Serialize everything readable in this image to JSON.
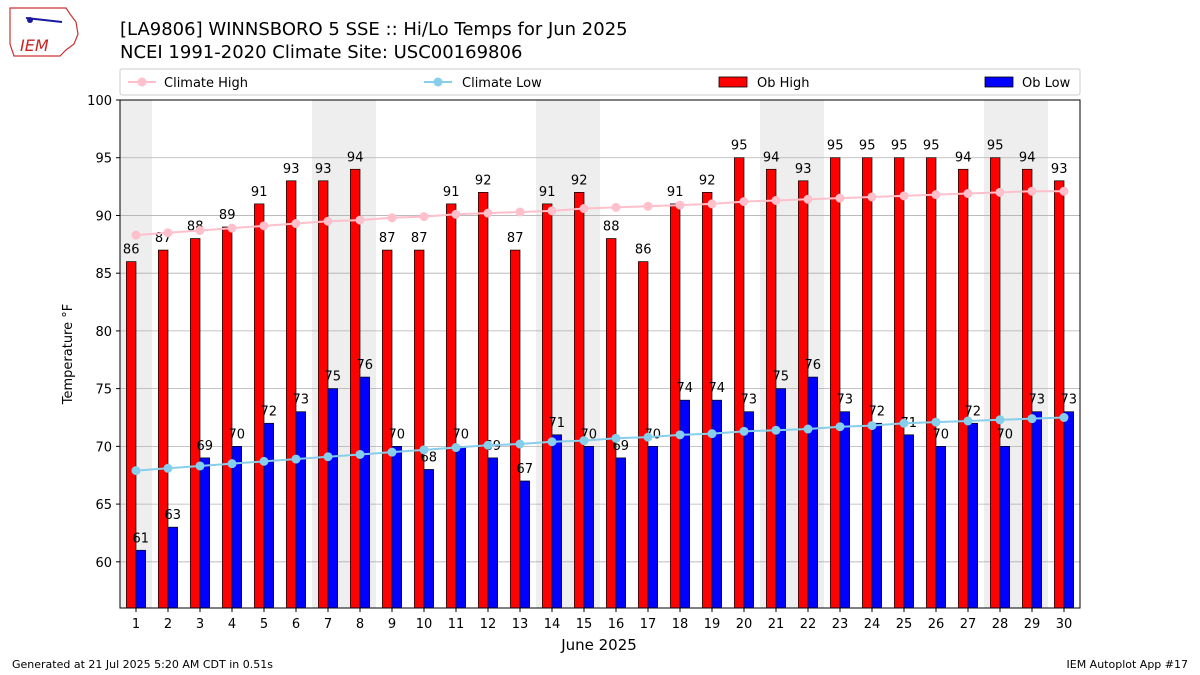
{
  "logo": {
    "text": "IEM"
  },
  "header": {
    "title": "[LA9806] WINNSBORO 5 SSE :: Hi/Lo Temps for Jun 2025",
    "subtitle": "NCEI 1991-2020 Climate Site: USC00169806"
  },
  "footer": {
    "left": "Generated at 21 Jul 2025 5:20 AM CDT in 0.51s",
    "right": "IEM Autoplot App #17"
  },
  "colors": {
    "ob_high": "#ff0000",
    "ob_low": "#0000ff",
    "climate_high": "#ffc0cb",
    "climate_low": "#87ceeb",
    "weekend_band": "#eeeeee"
  },
  "chart_data": {
    "type": "bar",
    "xlabel": "June 2025",
    "ylabel": "Temperature °F",
    "ylim": [
      56,
      100
    ],
    "yticks": [
      60,
      65,
      70,
      75,
      80,
      85,
      90,
      95,
      100
    ],
    "grid": true,
    "legend_placement": "top",
    "x": [
      1,
      2,
      3,
      4,
      5,
      6,
      7,
      8,
      9,
      10,
      11,
      12,
      13,
      14,
      15,
      16,
      17,
      18,
      19,
      20,
      21,
      22,
      23,
      24,
      25,
      26,
      27,
      28,
      29,
      30
    ],
    "weekend_days": [
      1,
      7,
      8,
      14,
      15,
      21,
      22,
      28,
      29
    ],
    "series": [
      {
        "name": "Ob High",
        "kind": "bar",
        "values": [
          86,
          87,
          88,
          89,
          91,
          93,
          93,
          94,
          87,
          87,
          91,
          92,
          87,
          91,
          92,
          88,
          86,
          91,
          92,
          95,
          94,
          93,
          95,
          95,
          95,
          95,
          94,
          95,
          94,
          93
        ]
      },
      {
        "name": "Ob Low",
        "kind": "bar",
        "values": [
          61,
          63,
          69,
          70,
          72,
          73,
          75,
          76,
          70,
          68,
          70,
          69,
          67,
          71,
          70,
          69,
          70,
          74,
          74,
          73,
          75,
          76,
          73,
          72,
          71,
          70,
          72,
          70,
          73,
          73
        ]
      },
      {
        "name": "Climate High",
        "kind": "line",
        "values": [
          88.3,
          88.5,
          88.7,
          88.9,
          89.1,
          89.3,
          89.5,
          89.6,
          89.8,
          89.9,
          90.1,
          90.2,
          90.3,
          90.4,
          90.6,
          90.7,
          90.8,
          90.9,
          91.0,
          91.2,
          91.3,
          91.4,
          91.5,
          91.6,
          91.7,
          91.8,
          91.9,
          92.0,
          92.1,
          92.1
        ]
      },
      {
        "name": "Climate Low",
        "kind": "line",
        "values": [
          67.9,
          68.1,
          68.3,
          68.5,
          68.7,
          68.9,
          69.1,
          69.3,
          69.5,
          69.7,
          69.9,
          70.1,
          70.2,
          70.4,
          70.5,
          70.7,
          70.8,
          71.0,
          71.1,
          71.3,
          71.4,
          71.5,
          71.7,
          71.8,
          72.0,
          72.1,
          72.2,
          72.3,
          72.4,
          72.5
        ]
      }
    ]
  }
}
